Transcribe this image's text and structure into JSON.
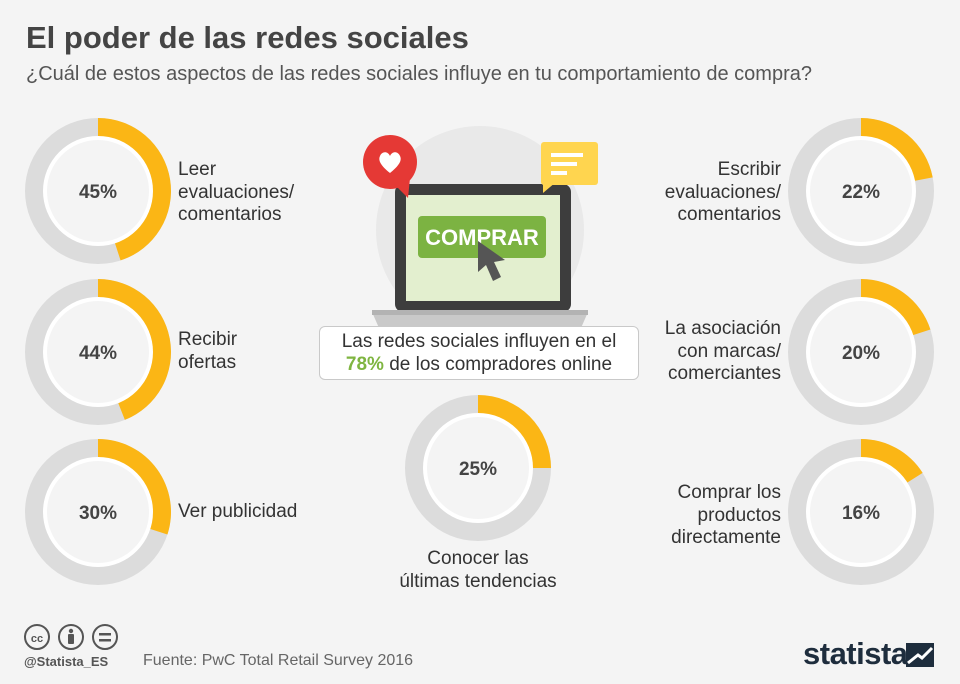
{
  "header": {
    "title": "El poder de las redes sociales",
    "subtitle": "¿Cuál de estos aspectos de las redes sociales influye en tu comportamiento de compra?"
  },
  "illustration": {
    "button_label": "COMPRAR",
    "icons": [
      "heart-bubble-icon",
      "chat-bubble-icon",
      "laptop-icon",
      "cursor-arrow-icon"
    ]
  },
  "callout": {
    "text_line1": "Las redes sociales influyen en el",
    "highlight_value": "78%",
    "text_line2_rest": " de los compradores online"
  },
  "colors": {
    "accent": "#fbb615",
    "track": "#dcdcdc",
    "highlight": "#7fb541",
    "button": "#7cb342",
    "screen": "#e3efcf",
    "background": "#f4f4f4"
  },
  "chart_data": {
    "type": "donut",
    "title": "El poder de las redes sociales",
    "subtitle": "¿Cuál de estos aspectos de las redes sociales influye en tu comportamiento de compra?",
    "unit": "%",
    "categories": [
      "Leer evaluaciones/ comentarios",
      "Recibir ofertas",
      "Ver publicidad",
      "Conocer las últimas tendencias",
      "Escribir evaluaciones/ comentarios",
      "La asociación con marcas/ comerciantes",
      "Comprar los productos directamente"
    ],
    "values": [
      45,
      44,
      30,
      25,
      22,
      20,
      16
    ],
    "value_labels": [
      "45%",
      "44%",
      "30%",
      "25%",
      "22%",
      "20%",
      "16%"
    ],
    "label_lines": [
      [
        "Leer",
        "evaluaciones/",
        "comentarios"
      ],
      [
        "Recibir",
        "ofertas"
      ],
      [
        "Ver publicidad"
      ],
      [
        "Conocer las",
        "últimas tendencias"
      ],
      [
        "Escribir",
        "evaluaciones/",
        "comentarios"
      ],
      [
        "La asociación",
        "con marcas/",
        "comerciantes"
      ],
      [
        "Comprar los",
        "productos",
        "directamente"
      ]
    ]
  },
  "footer": {
    "handle": "@Statista_ES",
    "source": "Fuente: PwC Total Retail Survey 2016",
    "brand": "statista",
    "license_icons": [
      "cc-icon",
      "by-icon",
      "nd-icon"
    ]
  }
}
